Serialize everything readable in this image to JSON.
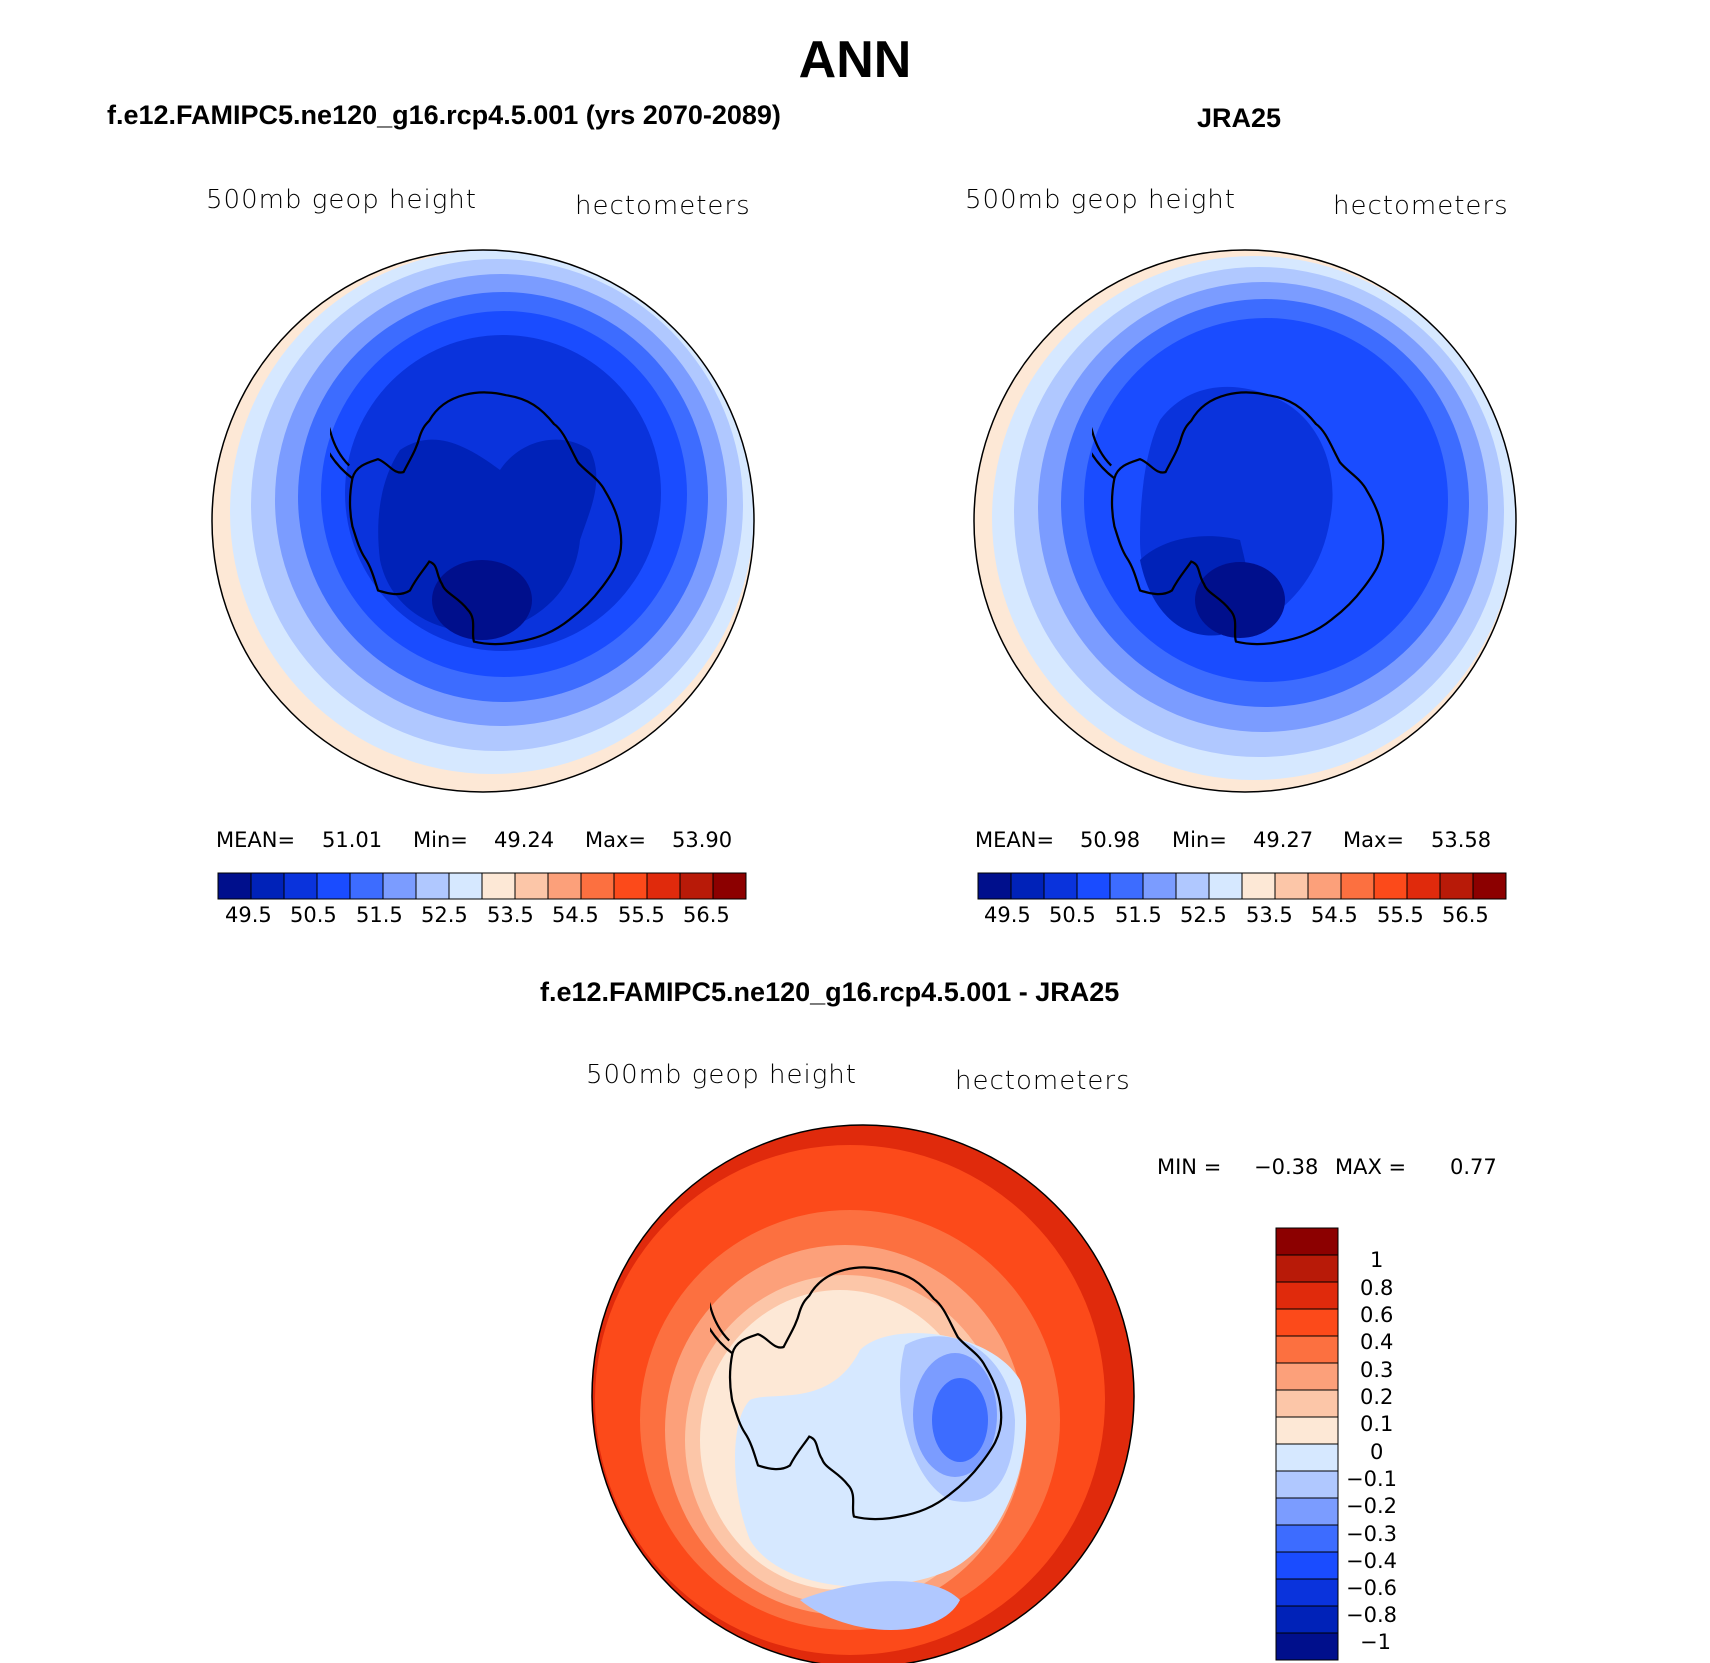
{
  "main_title": "ANN",
  "panels": [
    {
      "title": "f.e12.FAMIPC5.ne120_g16.rcp4.5.001 (yrs 2070-2089)",
      "left_label": "500mb geop height",
      "right_label": "hectometers",
      "stats": {
        "mean_label": "MEAN=",
        "mean": "51.01",
        "min_label": "Min=",
        "min": "49.24",
        "max_label": "Max=",
        "max": "53.90"
      },
      "colorbar_ticks": [
        "49.5",
        "50.5",
        "51.5",
        "52.5",
        "53.5",
        "54.5",
        "55.5",
        "56.5"
      ]
    },
    {
      "title": "JRA25",
      "left_label": "500mb geop height",
      "right_label": "hectometers",
      "stats": {
        "mean_label": "MEAN=",
        "mean": "50.98",
        "min_label": "Min=",
        "min": "49.27",
        "max_label": "Max=",
        "max": "53.58"
      },
      "colorbar_ticks": [
        "49.5",
        "50.5",
        "51.5",
        "52.5",
        "53.5",
        "54.5",
        "55.5",
        "56.5"
      ]
    },
    {
      "title": "f.e12.FAMIPC5.ne120_g16.rcp4.5.001 - JRA25",
      "left_label": "500mb geop height",
      "right_label": "hectometers",
      "stats": {
        "min_label": "MIN =",
        "min": "−0.38",
        "max_label": "MAX =",
        "max": "0.77"
      },
      "colorbar_ticks": [
        "1",
        "0.8",
        "0.6",
        "0.4",
        "0.3",
        "0.2",
        "0.1",
        "0",
        "−0.1",
        "−0.2",
        "−0.3",
        "−0.4",
        "−0.6",
        "−0.8",
        "−1"
      ]
    }
  ],
  "colors": {
    "geop_scale": [
      "#000f8c",
      "#0022b8",
      "#0a33dc",
      "#1a4cff",
      "#3d6cff",
      "#7b9cff",
      "#b0c8ff",
      "#d6e8ff",
      "#fde8d6",
      "#fcc6a8",
      "#fca07a",
      "#fc7040",
      "#fc4a1a",
      "#e02a0c",
      "#b81a08",
      "#8c0000"
    ],
    "diff_scale": [
      "#8c0000",
      "#b81a08",
      "#e02a0c",
      "#fc4a1a",
      "#fc7040",
      "#fca07a",
      "#fcc6a8",
      "#fde8d6",
      "#d6e8ff",
      "#b0c8ff",
      "#7b9cff",
      "#3d6cff",
      "#1a4cff",
      "#0a33dc",
      "#0022b8",
      "#000f8c"
    ]
  }
}
